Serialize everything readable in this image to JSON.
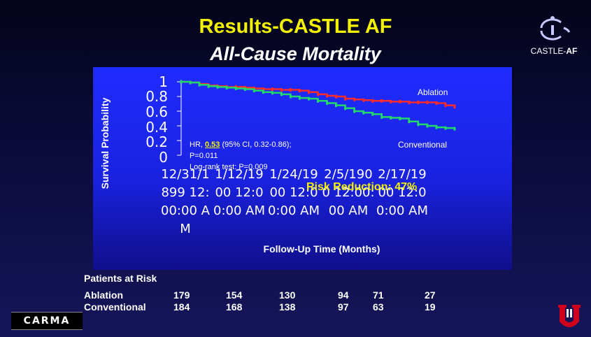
{
  "slide": {
    "title": "Results-CASTLE AF",
    "subtitle": "All-Cause Mortality",
    "logo_text_a": "CASTLE-",
    "logo_text_b": "AF",
    "footer_logo": "CARMA"
  },
  "chart_data": {
    "type": "line",
    "ylabel": "Survival Probability",
    "xlabel": "Follow-Up Time (Months)",
    "ylim": [
      0,
      1
    ],
    "yticks": [
      "1",
      "0.8",
      "0.6",
      "0.4",
      "0.2",
      "0"
    ],
    "xticks": [
      "12/31/1899 12:00:00 AM",
      "1/12/1900 12:00:00 AM",
      "1/24/1900 12:00:00 AM",
      "2/5/1900 12:00:00 AM",
      "2/17/1900 12:00:00 AM"
    ],
    "xlim": [
      0,
      60
    ],
    "series": [
      {
        "name": "Ablation",
        "color": "#ff2a2a",
        "x": [
          0,
          2,
          4,
          6,
          8,
          10,
          12,
          14,
          16,
          18,
          20,
          22,
          24,
          26,
          28,
          30,
          32,
          34,
          36,
          38,
          40,
          42,
          44,
          46,
          48,
          50,
          52,
          54,
          56,
          58,
          60
        ],
        "y": [
          1.0,
          0.99,
          0.97,
          0.95,
          0.94,
          0.93,
          0.93,
          0.92,
          0.91,
          0.9,
          0.9,
          0.89,
          0.89,
          0.88,
          0.86,
          0.83,
          0.81,
          0.8,
          0.77,
          0.76,
          0.75,
          0.74,
          0.74,
          0.73,
          0.73,
          0.72,
          0.72,
          0.72,
          0.71,
          0.68,
          0.66
        ]
      },
      {
        "name": "Conventional",
        "color": "#22d86a",
        "x": [
          0,
          2,
          4,
          6,
          8,
          10,
          12,
          14,
          16,
          18,
          20,
          22,
          24,
          26,
          28,
          30,
          32,
          34,
          36,
          38,
          40,
          42,
          44,
          46,
          48,
          50,
          52,
          54,
          56,
          58,
          60
        ],
        "y": [
          1.0,
          0.99,
          0.96,
          0.94,
          0.93,
          0.92,
          0.91,
          0.9,
          0.88,
          0.86,
          0.85,
          0.83,
          0.8,
          0.78,
          0.77,
          0.74,
          0.71,
          0.68,
          0.64,
          0.6,
          0.58,
          0.56,
          0.52,
          0.51,
          0.5,
          0.46,
          0.42,
          0.4,
          0.38,
          0.37,
          0.36
        ]
      }
    ],
    "annotations": {
      "ablation_label": "Ablation",
      "conventional_label": "Conventional",
      "hr_prefix": "HR, ",
      "hr_value": "0.53",
      "hr_suffix": " (95% CI, 0.32-0.86);",
      "p_value": "P=0.011",
      "logrank": "Log-rank test: P=0.009",
      "risk_reduction": "Risk Reduction: 47%"
    }
  },
  "patients_at_risk": {
    "title": "Patients at Risk",
    "rows": [
      {
        "label": "Ablation",
        "values": [
          "179",
          "154",
          "130",
          "94",
          "71",
          "27"
        ]
      },
      {
        "label": "Conventional",
        "values": [
          "184",
          "168",
          "138",
          "97",
          "63",
          "19"
        ]
      }
    ]
  }
}
